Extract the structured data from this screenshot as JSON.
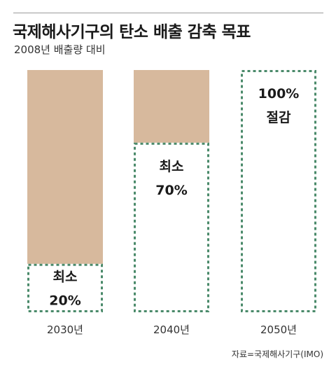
{
  "header": {
    "title": "국제해사기구의 탄소 배출 감축 목표",
    "subtitle": "2008년 배출량 대비"
  },
  "source": "자료=국제해사기구(IMO)",
  "colors": {
    "remaining_emissions": "#d7b99d",
    "reduction_border": "#4a8a6a",
    "text": "#1a1a1a"
  },
  "chart_data": {
    "type": "bar",
    "stacked": true,
    "categories": [
      "2030년",
      "2040년",
      "2050년"
    ],
    "series": [
      {
        "values": [
          80,
          30,
          0
        ]
      },
      {
        "values": [
          20,
          70,
          100
        ]
      }
    ],
    "labels": [
      [
        "최소",
        "20%"
      ],
      [
        "최소",
        "70%"
      ],
      [
        "100%",
        "절감"
      ]
    ],
    "ylim": [
      0,
      100
    ]
  }
}
